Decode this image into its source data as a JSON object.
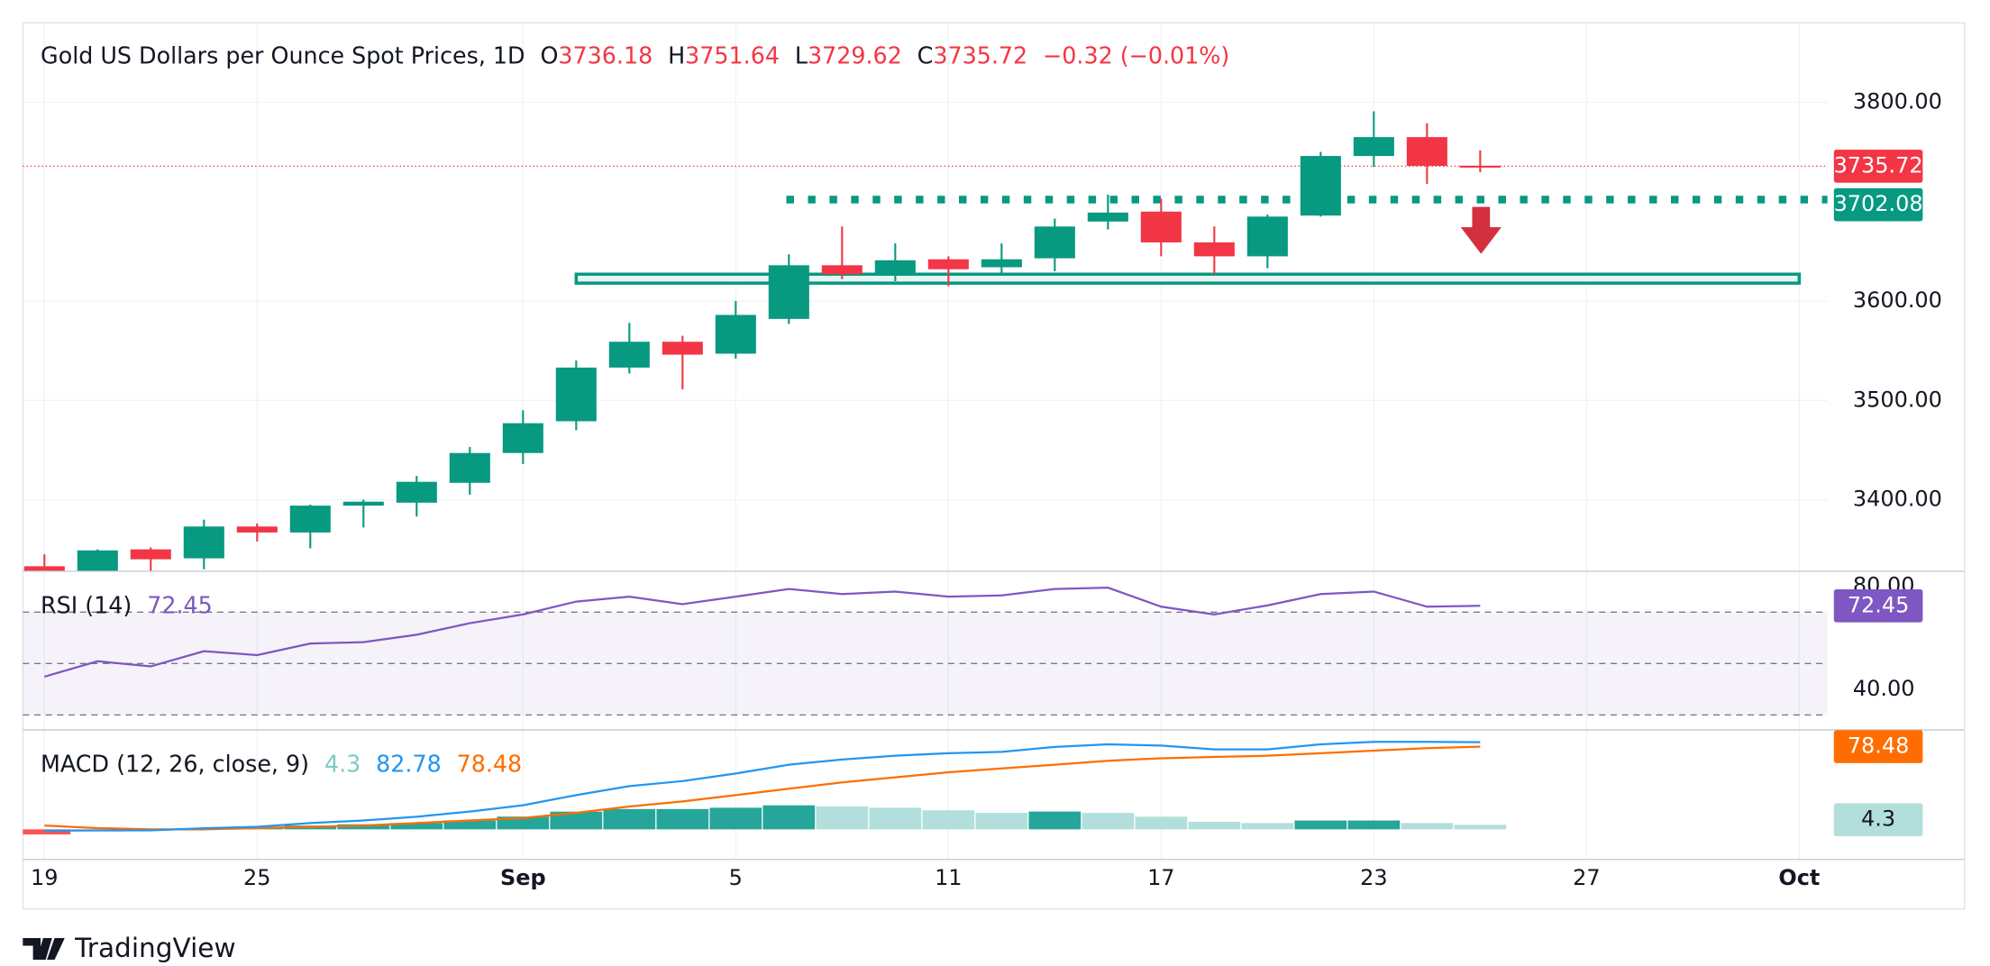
{
  "chart_data": {
    "type": "candlestick",
    "title": "Gold US Dollars per Ounce Spot Prices, 1D",
    "ohlc_labels": [
      "O",
      "H",
      "L",
      "C"
    ],
    "change_label": "−0.32 (−0.01%)",
    "categories": [
      "19",
      null,
      null,
      null,
      "25",
      null,
      null,
      null,
      null,
      "Sep",
      null,
      null,
      null,
      "5",
      null,
      null,
      null,
      "11",
      null,
      null,
      null,
      "17",
      null,
      null,
      null,
      "23",
      null,
      null,
      null,
      "27",
      null,
      null,
      null,
      "Oct"
    ],
    "open": [
      3333,
      3328,
      3350,
      3341,
      3373,
      3367,
      3394,
      3397,
      3417,
      3447,
      3479,
      3533,
      3559,
      3547,
      3582,
      3636,
      3627,
      3642,
      3634,
      3643,
      3680,
      3690,
      3659,
      3645,
      3686,
      3746,
      3765,
      3736.18,
      null,
      null,
      null,
      null,
      null,
      null
    ],
    "high": [
      3345,
      3350,
      3352,
      3380,
      3376,
      3395,
      3400,
      3424,
      3453,
      3490,
      3540,
      3578,
      3565,
      3600,
      3647,
      3675,
      3658,
      3645,
      3658,
      3683,
      3707,
      3703,
      3675,
      3687,
      3750,
      3791,
      3779,
      3751.64,
      null,
      null,
      null,
      null,
      null,
      null
    ],
    "low": [
      3320,
      3325,
      3328,
      3330,
      3358,
      3351,
      3372,
      3383,
      3405,
      3436,
      3470,
      3527,
      3511,
      3542,
      3577,
      3622,
      3620,
      3615,
      3628,
      3630,
      3672,
      3645,
      3627,
      3633,
      3685,
      3735,
      3718,
      3729.62,
      null,
      null,
      null,
      null,
      null,
      null
    ],
    "close": [
      3328,
      3349,
      3340,
      3373,
      3367,
      3394,
      3398,
      3418,
      3447,
      3477,
      3533,
      3559,
      3546,
      3586,
      3636,
      3627,
      3641,
      3632,
      3642,
      3675,
      3689,
      3659,
      3645,
      3685,
      3746,
      3765,
      3736,
      3735.72,
      null,
      null,
      null,
      null,
      null,
      null
    ],
    "up_color": "#089981",
    "down_color": "#f23645",
    "ylim": [
      3328,
      3880
    ],
    "yticks": [
      {
        "value": 3400,
        "label": "3400.00"
      },
      {
        "value": 3500,
        "label": "3500.00"
      },
      {
        "value": 3600,
        "label": "3600.00"
      },
      {
        "value": 3800,
        "label": "3800.00"
      }
    ],
    "level": {
      "value": 3702.08,
      "label": "3702.08"
    },
    "zone": [
      3618,
      3627
    ],
    "rsi": {
      "title": "RSI (14)",
      "color": "#7e57c2",
      "values": [
        44.9,
        50.9,
        48.9,
        54.8,
        53.3,
        57.8,
        58.3,
        61.2,
        65.7,
        69.1,
        74.1,
        76.0,
        73.1,
        76.0,
        79.0,
        77.0,
        78.0,
        76.0,
        76.5,
        79.0,
        79.5,
        72.1,
        69.1,
        72.6,
        77.0,
        78.0,
        72.1,
        72.45,
        null,
        null,
        null,
        null,
        null,
        null
      ],
      "ylim": [
        24.2,
        85.9
      ],
      "yticks": [
        {
          "value": 80,
          "label": "80.00"
        },
        {
          "value": 40,
          "label": "40.00"
        }
      ],
      "bands": [
        70,
        50,
        30
      ]
    },
    "macd": {
      "title": "MACD (12, 26, close, 9)",
      "macd_color": "#2196f3",
      "signal_color": "#ff6d00",
      "hist_colors": [
        "#26a69a",
        "#b2dfdb",
        "#ff5252",
        "#ffcdd2"
      ],
      "macd": [
        -1.2,
        -1,
        -1,
        1,
        2.4,
        6,
        8.4,
        12,
        16.9,
        22.9,
        32.5,
        41,
        45.8,
        53,
        61.4,
        66.3,
        69.9,
        72.3,
        73.5,
        78.3,
        80.7,
        79.5,
        75.9,
        75.9,
        80.7,
        83.1,
        83.1,
        82.78,
        null,
        null,
        null,
        null,
        null,
        null
      ],
      "signal": [
        3.6,
        1.2,
        0,
        0,
        1.2,
        2.4,
        3.6,
        6,
        8.4,
        10.8,
        15.7,
        21.7,
        26.5,
        32.5,
        38.6,
        44.6,
        49.4,
        54.2,
        57.8,
        61.4,
        65.1,
        67.5,
        68.7,
        69.9,
        72.3,
        74.7,
        77.1,
        78.48,
        null,
        null,
        null,
        null,
        null,
        null
      ],
      "histogram": [
        -4.8,
        -2.2,
        -1,
        1,
        1.2,
        3.6,
        4.8,
        6,
        8.5,
        12.1,
        16.8,
        19.3,
        19.3,
        20.5,
        22.8,
        21.7,
        20.5,
        18.1,
        15.7,
        16.9,
        15.6,
        12,
        7.2,
        6,
        8.4,
        8.4,
        6,
        4.3,
        null,
        null,
        null,
        null,
        null,
        null
      ],
      "ylim": [
        -28.5,
        92
      ]
    },
    "branding": "TradingView"
  }
}
